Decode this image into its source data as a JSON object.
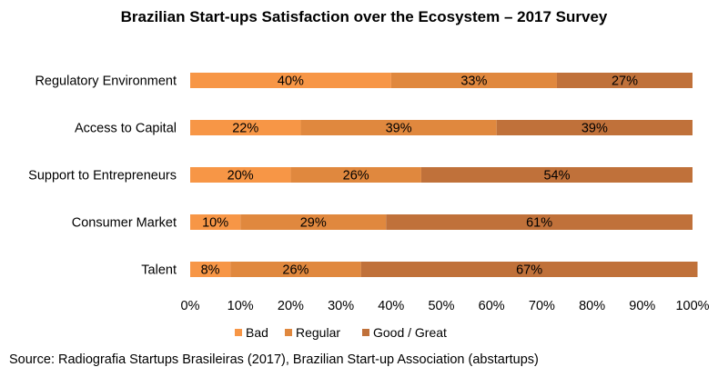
{
  "chart_data": {
    "type": "bar",
    "orientation": "horizontal",
    "stacked": true,
    "percent": true,
    "title": "Brazilian Start-ups Satisfaction over the Ecosystem – 2017 Survey",
    "categories": [
      "Regulatory Environment",
      "Access to Capital",
      "Support to Entrepreneurs",
      "Consumer Market",
      "Talent"
    ],
    "series": [
      {
        "name": "Bad",
        "color": "#F79646",
        "values": [
          40,
          22,
          20,
          10,
          8
        ]
      },
      {
        "name": "Regular",
        "color": "#E0883E",
        "values": [
          33,
          39,
          26,
          29,
          26
        ]
      },
      {
        "name": "Good / Great",
        "color": "#C0713A",
        "values": [
          27,
          39,
          54,
          61,
          67
        ]
      }
    ],
    "data_labels": [
      [
        "40%",
        "22%",
        "20%",
        "10%",
        "8%"
      ],
      [
        "33%",
        "39%",
        "26%",
        "29%",
        "26%"
      ],
      [
        "27%",
        "39%",
        "54%",
        "61%",
        "67%"
      ]
    ],
    "xlim": [
      0,
      100
    ],
    "xticks": [
      "0%",
      "10%",
      "20%",
      "30%",
      "40%",
      "50%",
      "60%",
      "70%",
      "80%",
      "90%",
      "100%"
    ],
    "grid": false,
    "legend_position": "bottom"
  },
  "source_note": "Source: Radiografia Startups Brasileiras (2017), Brazilian Start-up Association (abstartups)"
}
